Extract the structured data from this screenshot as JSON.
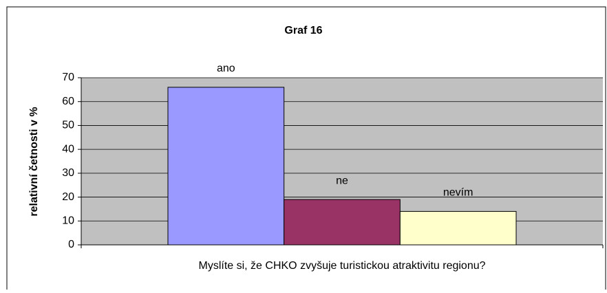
{
  "chart_data": {
    "type": "bar",
    "title": "Graf 16",
    "x_label": "Myslíte si, že CHKO zvyšuje turistickou atraktivitu regionu?",
    "y_label": "relativní četnosti v %",
    "categories": [
      "ano",
      "ne",
      "nevím"
    ],
    "values": [
      66,
      19,
      14
    ],
    "colors": [
      "#9999ff",
      "#993366",
      "#ffffcc"
    ],
    "ylim": [
      0,
      70
    ],
    "yticks": [
      0,
      10,
      20,
      30,
      40,
      50,
      60,
      70
    ],
    "grid": true
  }
}
